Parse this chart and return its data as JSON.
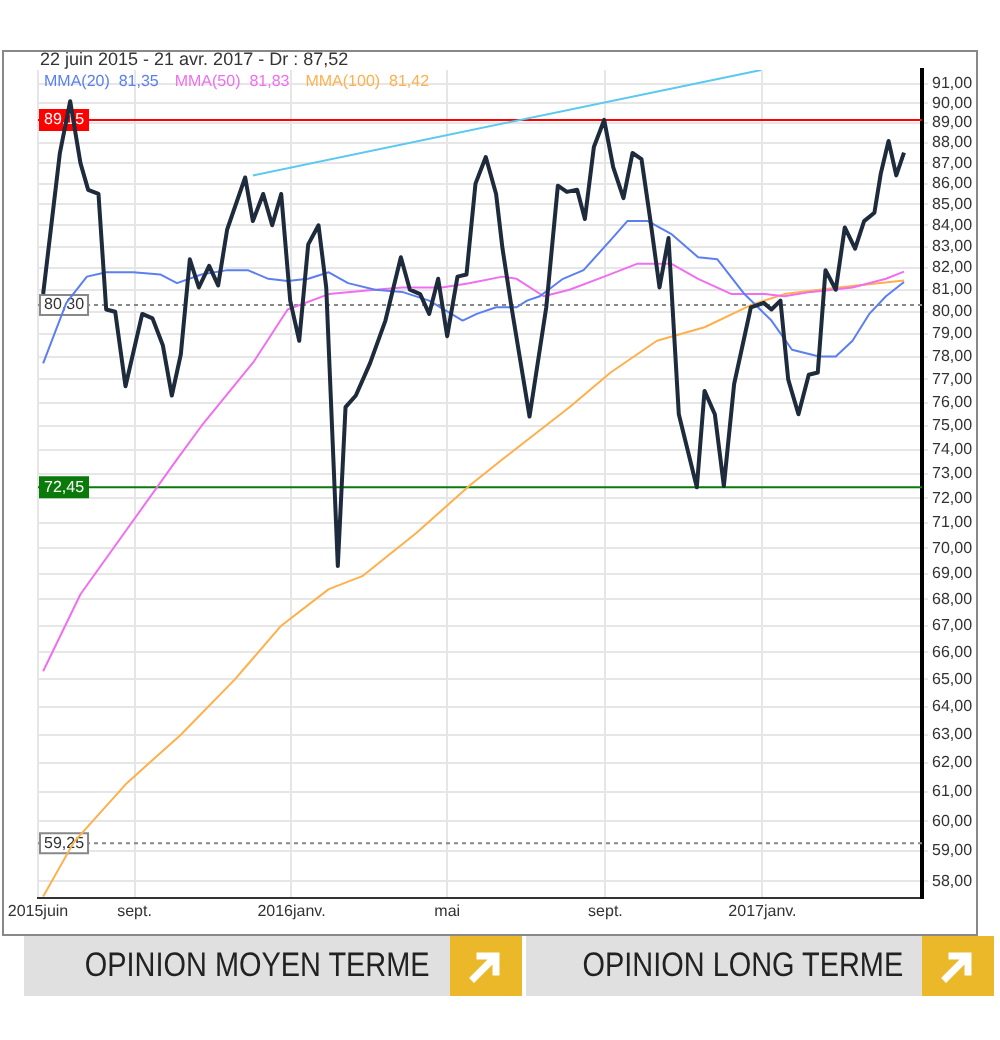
{
  "chart_data": {
    "type": "line",
    "title": "22 juin 2015 - 21 avr. 2017 - Dr : 87,52",
    "xlim": [
      "2015-06-18",
      "2017-05-05"
    ],
    "xticks": [
      {
        "value": "2015-06-18",
        "label": "2015juin"
      },
      {
        "value": "2015-09-01",
        "label": "sept."
      },
      {
        "value": "2016-01-01",
        "label": "2016janv."
      },
      {
        "value": "2016-05-01",
        "label": "mai"
      },
      {
        "value": "2016-09-01",
        "label": "sept."
      },
      {
        "value": "2017-01-01",
        "label": "2017janv."
      }
    ],
    "ylim": [
      57.45,
      91.7
    ],
    "log": true,
    "yticks": [
      {
        "value": 58,
        "label": "58,00"
      },
      {
        "value": 59,
        "label": "59,00"
      },
      {
        "value": 60,
        "label": "60,00"
      },
      {
        "value": 61,
        "label": "61,00"
      },
      {
        "value": 62,
        "label": "62,00"
      },
      {
        "value": 63,
        "label": "63,00"
      },
      {
        "value": 64,
        "label": "64,00"
      },
      {
        "value": 65,
        "label": "65,00"
      },
      {
        "value": 66,
        "label": "66,00"
      },
      {
        "value": 67,
        "label": "67,00"
      },
      {
        "value": 68,
        "label": "68,00"
      },
      {
        "value": 69,
        "label": "69,00"
      },
      {
        "value": 70,
        "label": "70,00"
      },
      {
        "value": 71,
        "label": "71,00"
      },
      {
        "value": 72,
        "label": "72,00"
      },
      {
        "value": 73,
        "label": "73,00"
      },
      {
        "value": 74,
        "label": "74,00"
      },
      {
        "value": 75,
        "label": "75,00"
      },
      {
        "value": 76,
        "label": "76,00"
      },
      {
        "value": 77,
        "label": "77,00"
      },
      {
        "value": 78,
        "label": "78,00"
      },
      {
        "value": 79,
        "label": "79,00"
      },
      {
        "value": 80,
        "label": "80,00"
      },
      {
        "value": 81,
        "label": "81,00"
      },
      {
        "value": 82,
        "label": "82,00"
      },
      {
        "value": 83,
        "label": "83,00"
      },
      {
        "value": 84,
        "label": "84,00"
      },
      {
        "value": 85,
        "label": "85,00"
      },
      {
        "value": 86,
        "label": "86,00"
      },
      {
        "value": 87,
        "label": "87,00"
      },
      {
        "value": 88,
        "label": "88,00"
      },
      {
        "value": 89,
        "label": "89,00"
      },
      {
        "value": 90,
        "label": "90,00"
      },
      {
        "value": 91,
        "label": "91,00"
      }
    ],
    "grid": true,
    "legend": "top left",
    "marker": "none",
    "line_style": "solid",
    "series": [
      {
        "color": "#1e2b3c",
        "x": [
          "2015-06-22",
          "2015-07-05",
          "2015-07-13",
          "2015-07-21",
          "2015-07-27",
          "2015-08-04",
          "2015-08-10",
          "2015-08-17",
          "2015-08-25",
          "2015-09-07",
          "2015-09-15",
          "2015-09-23",
          "2015-09-30",
          "2015-10-07",
          "2015-10-14",
          "2015-10-21",
          "2015-10-29",
          "2015-11-05",
          "2015-11-12",
          "2015-11-26",
          "2015-12-02",
          "2015-12-10",
          "2015-12-17",
          "2015-12-24",
          "2015-12-31",
          "2016-01-07",
          "2016-01-14",
          "2016-01-22",
          "2016-01-28",
          "2016-02-06",
          "2016-02-12",
          "2016-02-20",
          "2016-03-02",
          "2016-03-14",
          "2016-03-26",
          "2016-04-02",
          "2016-04-10",
          "2016-04-17",
          "2016-04-24",
          "2016-05-01",
          "2016-05-09",
          "2016-05-16",
          "2016-05-23",
          "2016-05-31",
          "2016-06-08",
          "2016-06-13",
          "2016-06-20",
          "2016-07-04",
          "2016-07-17",
          "2016-07-26",
          "2016-08-02",
          "2016-08-10",
          "2016-08-16",
          "2016-08-23",
          "2016-08-31",
          "2016-09-07",
          "2016-09-15",
          "2016-09-22",
          "2016-09-29",
          "2016-10-06",
          "2016-10-13",
          "2016-10-20",
          "2016-10-28",
          "2016-11-11",
          "2016-11-17",
          "2016-11-25",
          "2016-12-02",
          "2016-12-10",
          "2016-12-23",
          "2017-01-02",
          "2017-01-08",
          "2017-01-15",
          "2017-01-21",
          "2017-01-29",
          "2017-02-06",
          "2017-02-13",
          "2017-02-19",
          "2017-02-27",
          "2017-03-06",
          "2017-03-14",
          "2017-03-21",
          "2017-03-29",
          "2017-04-03",
          "2017-04-09",
          "2017-04-15",
          "2017-04-21"
        ],
        "values": [
          80.8,
          87.5,
          90.1,
          87.0,
          85.7,
          85.5,
          80.1,
          80.0,
          76.7,
          79.9,
          79.7,
          78.5,
          76.3,
          78.1,
          82.4,
          81.1,
          82.1,
          81.2,
          83.8,
          86.3,
          84.2,
          85.5,
          84.0,
          85.5,
          80.5,
          78.7,
          83.1,
          84.0,
          81.1,
          69.3,
          75.8,
          76.3,
          77.7,
          79.6,
          82.5,
          81.0,
          80.8,
          79.9,
          81.5,
          78.9,
          81.6,
          81.7,
          86.0,
          87.3,
          85.5,
          82.9,
          80.2,
          75.4,
          80.2,
          85.9,
          85.6,
          85.7,
          84.3,
          87.8,
          89.15,
          86.8,
          85.3,
          87.5,
          87.2,
          84.2,
          81.1,
          83.4,
          75.5,
          72.45,
          76.5,
          75.5,
          72.5,
          76.8,
          80.2,
          80.4,
          80.1,
          80.5,
          77.0,
          75.5,
          77.2,
          77.3,
          81.9,
          81.0,
          83.9,
          82.9,
          84.2,
          84.6,
          86.5,
          88.1,
          86.4,
          87.52
        ]
      },
      {
        "name": "MMA(20)  81,35",
        "color": "#5b7ff0",
        "x": [
          "2015-06-22",
          "2015-07-10",
          "2015-07-26",
          "2015-08-10",
          "2015-08-31",
          "2015-09-21",
          "2015-10-04",
          "2015-10-23",
          "2015-11-12",
          "2015-11-28",
          "2015-12-14",
          "2015-12-29",
          "2016-01-14",
          "2016-01-30",
          "2016-02-14",
          "2016-03-06",
          "2016-03-27",
          "2016-04-17",
          "2016-05-13",
          "2016-05-24",
          "2016-06-08",
          "2016-06-24",
          "2016-07-02",
          "2016-07-12",
          "2016-07-30",
          "2016-08-15",
          "2016-09-05",
          "2016-09-18",
          "2016-10-04",
          "2016-10-22",
          "2016-11-12",
          "2016-11-27",
          "2016-12-18",
          "2017-01-08",
          "2017-01-24",
          "2017-02-14",
          "2017-02-27",
          "2017-03-12",
          "2017-03-25",
          "2017-04-07",
          "2017-04-21"
        ],
        "values": [
          77.7,
          80.4,
          81.6,
          81.8,
          81.8,
          81.7,
          81.3,
          81.7,
          81.9,
          81.9,
          81.5,
          81.4,
          81.5,
          81.8,
          81.3,
          81.0,
          80.9,
          80.5,
          79.6,
          79.9,
          80.2,
          80.2,
          80.5,
          80.7,
          81.5,
          81.9,
          83.3,
          84.2,
          84.2,
          83.6,
          82.5,
          82.4,
          80.8,
          79.6,
          78.3,
          78.0,
          78.0,
          78.7,
          79.9,
          80.7,
          81.35
        ]
      },
      {
        "name": "MMA(50)  81,83",
        "color": "#f06ef0",
        "x": [
          "2015-06-22",
          "2015-07-21",
          "2015-08-31",
          "2015-10-04",
          "2015-10-23",
          "2015-12-03",
          "2015-12-29",
          "2016-01-30",
          "2016-03-06",
          "2016-03-27",
          "2016-04-27",
          "2016-05-18",
          "2016-06-13",
          "2016-06-24",
          "2016-07-15",
          "2016-08-04",
          "2016-08-31",
          "2016-09-26",
          "2016-10-22",
          "2016-11-12",
          "2016-12-08",
          "2017-01-03",
          "2017-01-18",
          "2017-02-08",
          "2017-03-12",
          "2017-04-07",
          "2017-04-21"
        ],
        "values": [
          65.3,
          68.2,
          71.1,
          73.6,
          75.0,
          77.8,
          80.1,
          80.8,
          81.0,
          81.1,
          81.1,
          81.3,
          81.6,
          81.5,
          80.7,
          81.0,
          81.6,
          82.2,
          82.2,
          81.5,
          80.8,
          80.8,
          80.7,
          80.9,
          81.1,
          81.5,
          81.83
        ]
      },
      {
        "name": "MMA(100)  81,42",
        "color": "#ffb04c",
        "x": [
          "2015-06-22",
          "2015-07-16",
          "2015-08-26",
          "2015-10-07",
          "2015-11-18",
          "2015-12-24",
          "2016-01-30",
          "2016-02-25",
          "2016-04-07",
          "2016-05-18",
          "2016-06-13",
          "2016-08-04",
          "2016-09-05",
          "2016-10-11",
          "2016-11-17",
          "2016-12-23",
          "2017-01-18",
          "2017-03-01",
          "2017-04-21"
        ],
        "values": [
          57.5,
          59.3,
          61.3,
          63.0,
          65.0,
          67.0,
          68.4,
          68.9,
          70.6,
          72.5,
          73.6,
          75.8,
          77.3,
          78.7,
          79.3,
          80.3,
          80.8,
          81.1,
          81.42
        ]
      },
      {
        "type": "line",
        "color": "#5bc8f0",
        "x": [
          "2015-12-02",
          "2016-12-31"
        ],
        "values": [
          86.4,
          91.7
        ]
      }
    ],
    "ref_lines": [
      {
        "axis": "y",
        "value": 89.15,
        "label": "89,15",
        "color": "#ff0000",
        "line_style": "solid"
      },
      {
        "axis": "y",
        "value": 80.3,
        "label": "80,30",
        "color": "#888888",
        "line_style": "dotted"
      },
      {
        "axis": "y",
        "value": 72.45,
        "label": "72,45",
        "color": "#0a7a0a",
        "line_style": "solid"
      },
      {
        "axis": "y",
        "value": 59.25,
        "label": "59,25",
        "color": "#888888",
        "line_style": "dotted"
      }
    ],
    "annotations": [
      "OPINION MOYEN TERME",
      "OPINION LONG TERME"
    ]
  }
}
